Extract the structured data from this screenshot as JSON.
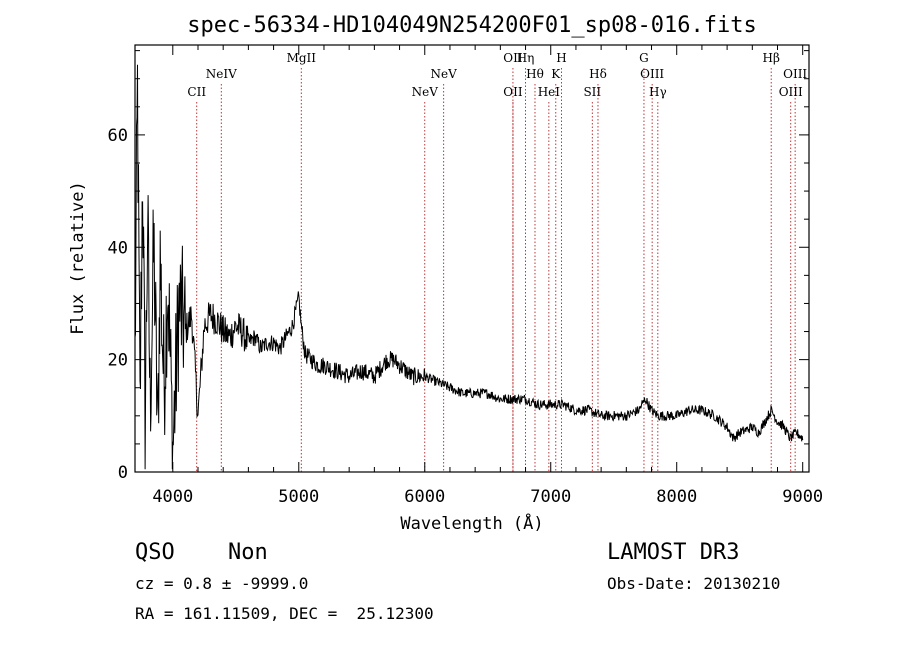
{
  "chart_data": {
    "type": "line",
    "title": "spec-56334-HD104049N254200F01_sp08-016.fits",
    "xlabel": "Wavelength (Å)",
    "ylabel": "Flux (relative)",
    "xlim": [
      3700,
      9050
    ],
    "ylim": [
      0,
      76
    ],
    "x_ticks": [
      4000,
      5000,
      6000,
      7000,
      8000,
      9000
    ],
    "x_tick_labels": [
      "4000",
      "5000",
      "6000",
      "7000",
      "8000",
      "9000"
    ],
    "y_ticks": [
      0,
      20,
      40,
      60
    ],
    "y_tick_labels": [
      "0",
      "20",
      "40",
      "60"
    ],
    "grid": false,
    "line_color": "#000000",
    "marker_color": "#b22222",
    "series": [
      {
        "name": "flux",
        "x": [
          3700,
          3720,
          3740,
          3760,
          3780,
          3800,
          3820,
          3850,
          3880,
          3900,
          3930,
          3960,
          4000,
          4050,
          4100,
          4150,
          4200,
          4250,
          4300,
          4350,
          4400,
          4450,
          4500,
          4550,
          4600,
          4650,
          4700,
          4750,
          4800,
          4850,
          4900,
          4950,
          5000,
          5020,
          5050,
          5100,
          5150,
          5200,
          5300,
          5400,
          5500,
          5600,
          5700,
          5750,
          5800,
          5850,
          5900,
          6000,
          6100,
          6200,
          6300,
          6400,
          6500,
          6600,
          6700,
          6800,
          6900,
          7000,
          7100,
          7200,
          7300,
          7400,
          7500,
          7600,
          7700,
          7750,
          7800,
          7850,
          7900,
          8000,
          8100,
          8200,
          8300,
          8400,
          8450,
          8500,
          8600,
          8650,
          8700,
          8750,
          8800,
          8850,
          8900,
          8950,
          9000
        ],
        "y": [
          20,
          68,
          10,
          55,
          8,
          45,
          12,
          40,
          6,
          38,
          15,
          35,
          4,
          30,
          25,
          28,
          10,
          26,
          28,
          27,
          25,
          24,
          26,
          25,
          23,
          24,
          22,
          23,
          23,
          22,
          24,
          26,
          31,
          26,
          21,
          20,
          19,
          19,
          18,
          17,
          18,
          17,
          20,
          20,
          19,
          18,
          17,
          17,
          16,
          15,
          14,
          14,
          14,
          13,
          13,
          13,
          12,
          12,
          12,
          11,
          11,
          10,
          10,
          10,
          11,
          13,
          11,
          10,
          10,
          10,
          11,
          11,
          10,
          8,
          6,
          7,
          8,
          7,
          9,
          11,
          9,
          8,
          6,
          7,
          6
        ]
      }
    ],
    "spectral_lines": [
      {
        "label": "CII",
        "wavelength": 4190,
        "row": 3
      },
      {
        "label": "NeIV",
        "wavelength": 4385,
        "row": 2
      },
      {
        "label": "MgII",
        "wavelength": 5020,
        "row": 1
      },
      {
        "label": "NeV",
        "wavelength": 6000,
        "row": 3
      },
      {
        "label": "NeV",
        "wavelength": 6150,
        "row": 2
      },
      {
        "label": "OII",
        "wavelength": 6700,
        "row": 1
      },
      {
        "label": "OII",
        "wavelength": 6700,
        "row": 3
      },
      {
        "label": "Hη",
        "wavelength": 6800,
        "row": 1
      },
      {
        "label": "Hθ",
        "wavelength": 6875,
        "row": 2
      },
      {
        "label": "HeI",
        "wavelength": 6985,
        "row": 3
      },
      {
        "label": "H",
        "wavelength": 7085,
        "row": 1
      },
      {
        "label": "K",
        "wavelength": 7040,
        "row": 2
      },
      {
        "label": "SII",
        "wavelength": 7330,
        "row": 3
      },
      {
        "label": "Hδ",
        "wavelength": 7375,
        "row": 2
      },
      {
        "label": "G",
        "wavelength": 7740,
        "row": 1
      },
      {
        "label": "OIII",
        "wavelength": 7805,
        "row": 2
      },
      {
        "label": "Hγ",
        "wavelength": 7850,
        "row": 3
      },
      {
        "label": "Hβ",
        "wavelength": 8750,
        "row": 1
      },
      {
        "label": "OIII",
        "wavelength": 8940,
        "row": 2
      },
      {
        "label": "OIII",
        "wavelength": 8905,
        "row": 3
      }
    ]
  },
  "info": {
    "object_class": "QSO",
    "subclass": "Non",
    "survey": "LAMOST DR3",
    "cz_text": "cz = 0.8 ± -9999.0",
    "obs_date_text": "Obs-Date: 20130210",
    "coords_text": "RA = 161.11509, DEC =  25.12300"
  }
}
